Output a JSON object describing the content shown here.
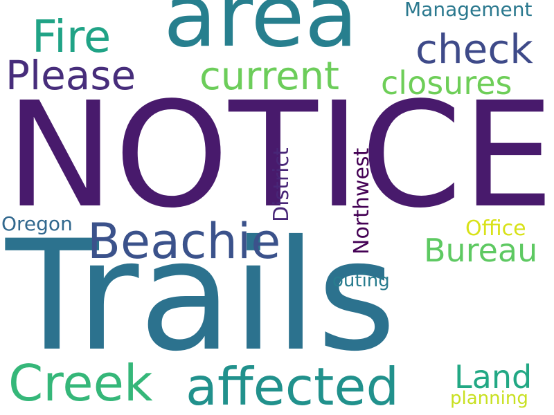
{
  "words": {
    "notice": {
      "text": "NOTICE",
      "color": "#481a6c"
    },
    "trails": {
      "text": "Trails",
      "color": "#2c728e"
    },
    "area": {
      "text": "area",
      "color": "#277f8e"
    },
    "creek": {
      "text": "Creek",
      "color": "#35b779"
    },
    "affected": {
      "text": "affected",
      "color": "#21918c"
    },
    "beachie": {
      "text": "Beachie",
      "color": "#3b528b"
    },
    "fire": {
      "text": "Fire",
      "color": "#20a386"
    },
    "check": {
      "text": "check",
      "color": "#3e4a89"
    },
    "please": {
      "text": "Please",
      "color": "#472d7b"
    },
    "current": {
      "text": "current",
      "color": "#6ccd5a"
    },
    "closures": {
      "text": "closures",
      "color": "#6ece58"
    },
    "bureau": {
      "text": "Bureau",
      "color": "#5ec962"
    },
    "land": {
      "text": "Land",
      "color": "#22a884"
    },
    "management": {
      "text": "Management",
      "color": "#2a788e"
    },
    "oregon": {
      "text": "Oregon",
      "color": "#31688e"
    },
    "office": {
      "text": "Office",
      "color": "#d8e219"
    },
    "outing": {
      "text": "outing",
      "color": "#287c8e"
    },
    "planning": {
      "text": "planning",
      "color": "#c8e020"
    },
    "district": {
      "text": "District",
      "color": "#482677"
    },
    "northwest": {
      "text": "Northwest",
      "color": "#440154"
    }
  }
}
